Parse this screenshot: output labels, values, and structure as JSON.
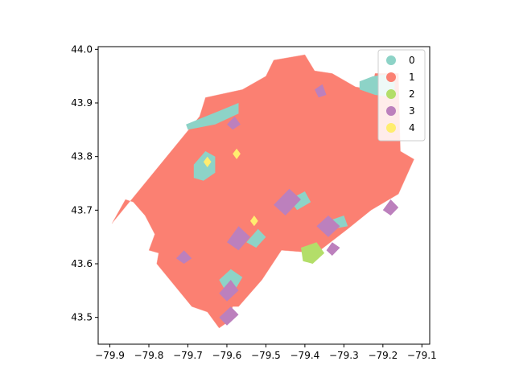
{
  "chart_data": {
    "type": "choropleth",
    "title": "",
    "xlabel": "",
    "ylabel": "",
    "xlim": [
      -79.93,
      -79.08
    ],
    "ylim": [
      43.45,
      44.005
    ],
    "x_ticks": [
      -79.9,
      -79.8,
      -79.7,
      -79.6,
      -79.5,
      -79.4,
      -79.3,
      -79.2,
      -79.1
    ],
    "x_tick_labels": [
      "−79.9",
      "−79.8",
      "−79.7",
      "−79.6",
      "−79.5",
      "−79.4",
      "−79.3",
      "−79.2",
      "−79.1"
    ],
    "y_ticks": [
      43.5,
      43.6,
      43.7,
      43.8,
      43.9,
      44.0
    ],
    "y_tick_labels": [
      "43.5",
      "43.6",
      "43.7",
      "43.8",
      "43.9",
      "44.0"
    ],
    "grid": false,
    "legend": {
      "position": "top-right",
      "entries": [
        {
          "label": "0",
          "color": "#8dd3c7"
        },
        {
          "label": "1",
          "color": "#fb8072"
        },
        {
          "label": "2",
          "color": "#b3de69"
        },
        {
          "label": "3",
          "color": "#bc80bd"
        },
        {
          "label": "4",
          "color": "#ffed6f"
        }
      ]
    },
    "regions": [
      {
        "class": 1,
        "outline": [
          [
            -79.895,
            43.675
          ],
          [
            -79.67,
            43.875
          ],
          [
            -79.655,
            43.91
          ],
          [
            -79.56,
            43.925
          ],
          [
            -79.5,
            43.95
          ],
          [
            -79.48,
            43.98
          ],
          [
            -79.4,
            43.99
          ],
          [
            -79.375,
            43.96
          ],
          [
            -79.33,
            43.955
          ],
          [
            -79.27,
            43.93
          ],
          [
            -79.23,
            43.925
          ],
          [
            -79.22,
            43.955
          ],
          [
            -79.16,
            43.955
          ],
          [
            -79.155,
            43.81
          ],
          [
            -79.12,
            43.795
          ],
          [
            -79.16,
            43.73
          ],
          [
            -79.23,
            43.7
          ],
          [
            -79.29,
            43.665
          ],
          [
            -79.37,
            43.62
          ],
          [
            -79.46,
            43.625
          ],
          [
            -79.51,
            43.57
          ],
          [
            -79.57,
            43.52
          ],
          [
            -79.585,
            43.52
          ],
          [
            -79.6,
            43.49
          ],
          [
            -79.62,
            43.48
          ],
          [
            -79.65,
            43.51
          ],
          [
            -79.69,
            43.52
          ],
          [
            -79.78,
            43.6
          ],
          [
            -79.775,
            43.62
          ],
          [
            -79.8,
            43.625
          ],
          [
            -79.785,
            43.655
          ],
          [
            -79.81,
            43.69
          ],
          [
            -79.84,
            43.715
          ],
          [
            -79.86,
            43.72
          ]
        ]
      },
      {
        "class": 0,
        "outline": [
          [
            -79.705,
            43.86
          ],
          [
            -79.62,
            43.885
          ],
          [
            -79.57,
            43.9
          ],
          [
            -79.57,
            43.88
          ],
          [
            -79.63,
            43.86
          ],
          [
            -79.7,
            43.85
          ]
        ]
      },
      {
        "class": 0,
        "outline": [
          [
            -79.26,
            43.94
          ],
          [
            -79.225,
            43.95
          ],
          [
            -79.17,
            43.955
          ],
          [
            -79.17,
            43.91
          ],
          [
            -79.22,
            43.915
          ],
          [
            -79.26,
            43.925
          ]
        ]
      },
      {
        "class": 0,
        "outline": [
          [
            -79.685,
            43.785
          ],
          [
            -79.655,
            43.81
          ],
          [
            -79.63,
            43.8
          ],
          [
            -79.63,
            43.77
          ],
          [
            -79.66,
            43.755
          ],
          [
            -79.685,
            43.76
          ]
        ]
      },
      {
        "class": 0,
        "outline": [
          [
            -79.62,
            43.57
          ],
          [
            -79.59,
            43.59
          ],
          [
            -79.56,
            43.575
          ],
          [
            -79.58,
            43.55
          ],
          [
            -79.6,
            43.545
          ]
        ]
      },
      {
        "class": 0,
        "outline": [
          [
            -79.55,
            43.64
          ],
          [
            -79.52,
            43.665
          ],
          [
            -79.5,
            43.65
          ],
          [
            -79.525,
            43.63
          ]
        ]
      },
      {
        "class": 0,
        "outline": [
          [
            -79.44,
            43.72
          ],
          [
            -79.4,
            43.735
          ],
          [
            -79.385,
            43.715
          ],
          [
            -79.42,
            43.7
          ]
        ]
      },
      {
        "class": 0,
        "outline": [
          [
            -79.34,
            43.68
          ],
          [
            -79.3,
            43.69
          ],
          [
            -79.29,
            43.67
          ],
          [
            -79.33,
            43.665
          ]
        ]
      },
      {
        "class": 3,
        "outline": [
          [
            -79.62,
            43.5
          ],
          [
            -79.59,
            43.52
          ],
          [
            -79.57,
            43.505
          ],
          [
            -79.6,
            43.485
          ]
        ]
      },
      {
        "class": 3,
        "outline": [
          [
            -79.62,
            43.545
          ],
          [
            -79.59,
            43.57
          ],
          [
            -79.57,
            43.55
          ],
          [
            -79.6,
            43.53
          ]
        ]
      },
      {
        "class": 3,
        "outline": [
          [
            -79.6,
            43.64
          ],
          [
            -79.57,
            43.67
          ],
          [
            -79.54,
            43.65
          ],
          [
            -79.57,
            43.625
          ]
        ]
      },
      {
        "class": 3,
        "outline": [
          [
            -79.48,
            43.71
          ],
          [
            -79.44,
            43.74
          ],
          [
            -79.41,
            43.72
          ],
          [
            -79.45,
            43.69
          ]
        ]
      },
      {
        "class": 3,
        "outline": [
          [
            -79.37,
            43.67
          ],
          [
            -79.34,
            43.69
          ],
          [
            -79.31,
            43.67
          ],
          [
            -79.34,
            43.65
          ]
        ]
      },
      {
        "class": 3,
        "outline": [
          [
            -79.345,
            43.625
          ],
          [
            -79.33,
            43.64
          ],
          [
            -79.31,
            43.63
          ],
          [
            -79.33,
            43.615
          ]
        ]
      },
      {
        "class": 3,
        "outline": [
          [
            -79.6,
            43.86
          ],
          [
            -79.58,
            43.875
          ],
          [
            -79.565,
            43.86
          ],
          [
            -79.585,
            43.85
          ]
        ]
      },
      {
        "class": 3,
        "outline": [
          [
            -79.375,
            43.925
          ],
          [
            -79.355,
            43.935
          ],
          [
            -79.345,
            43.915
          ],
          [
            -79.365,
            43.91
          ]
        ]
      },
      {
        "class": 3,
        "outline": [
          [
            -79.2,
            43.7
          ],
          [
            -79.18,
            43.72
          ],
          [
            -79.16,
            43.705
          ],
          [
            -79.18,
            43.69
          ]
        ]
      },
      {
        "class": 3,
        "outline": [
          [
            -79.73,
            43.61
          ],
          [
            -79.71,
            43.625
          ],
          [
            -79.69,
            43.61
          ],
          [
            -79.71,
            43.6
          ]
        ]
      },
      {
        "class": 4,
        "outline": [
          [
            -79.66,
            43.79
          ],
          [
            -79.65,
            43.8
          ],
          [
            -79.64,
            43.79
          ],
          [
            -79.65,
            43.78
          ]
        ]
      },
      {
        "class": 4,
        "outline": [
          [
            -79.585,
            43.805
          ],
          [
            -79.575,
            43.815
          ],
          [
            -79.565,
            43.805
          ],
          [
            -79.575,
            43.795
          ]
        ]
      },
      {
        "class": 4,
        "outline": [
          [
            -79.54,
            43.68
          ],
          [
            -79.53,
            43.69
          ],
          [
            -79.52,
            43.68
          ],
          [
            -79.53,
            43.67
          ]
        ]
      },
      {
        "class": 2,
        "outline": [
          [
            -79.41,
            43.63
          ],
          [
            -79.37,
            43.64
          ],
          [
            -79.35,
            43.62
          ],
          [
            -79.38,
            43.6
          ],
          [
            -79.405,
            43.605
          ]
        ]
      }
    ]
  }
}
